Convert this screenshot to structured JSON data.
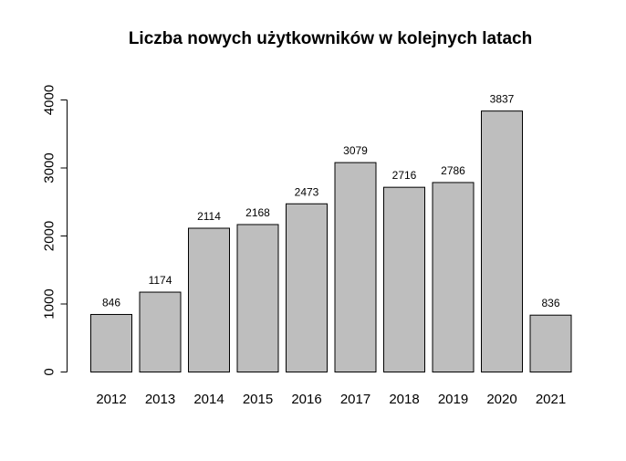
{
  "chart_data": {
    "type": "bar",
    "title": "Liczba nowych użytkowników w kolejnych latach",
    "xlabel": "",
    "ylabel": "",
    "categories": [
      "2012",
      "2013",
      "2014",
      "2015",
      "2016",
      "2017",
      "2018",
      "2019",
      "2020",
      "2021"
    ],
    "values": [
      846,
      1174,
      2114,
      2168,
      2473,
      3079,
      2716,
      2786,
      3837,
      836
    ],
    "ylim": [
      0,
      4000
    ],
    "yticks": [
      0,
      1000,
      2000,
      3000,
      4000
    ],
    "bar_color": "#bebebe",
    "data_labels": true,
    "grid": false,
    "legend": "none"
  }
}
